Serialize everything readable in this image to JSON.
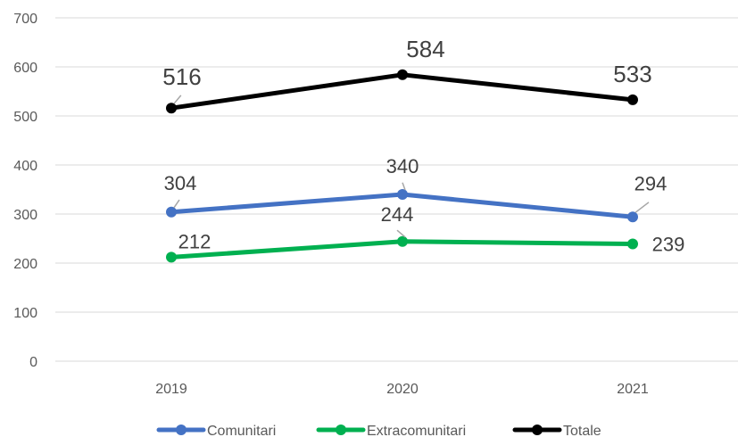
{
  "chart_data": {
    "type": "line",
    "categories": [
      "2019",
      "2020",
      "2021"
    ],
    "ylim": [
      0,
      700
    ],
    "yticks": [
      0,
      100,
      200,
      300,
      400,
      500,
      600,
      700
    ],
    "grid": true,
    "legend_position": "bottom",
    "series": [
      {
        "name": "Comunitari",
        "values": [
          304,
          340,
          294
        ],
        "color": "#4472C4"
      },
      {
        "name": "Extracomunitari",
        "values": [
          212,
          244,
          239
        ],
        "color": "#00B050"
      },
      {
        "name": "Totale",
        "values": [
          516,
          584,
          533
        ],
        "color": "#000000"
      }
    ]
  }
}
